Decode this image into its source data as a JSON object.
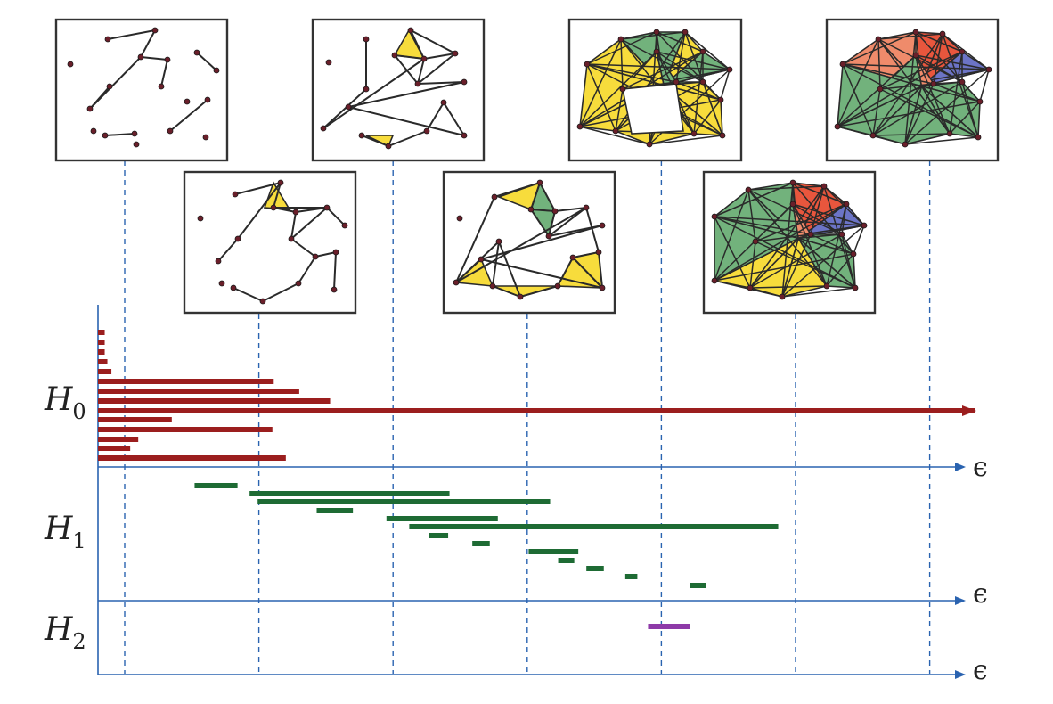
{
  "figure": {
    "colors": {
      "h0": "#9b1e1e",
      "h1": "#1e6b34",
      "h2": "#8e3aa8",
      "axis": "#2a63b0",
      "guide": "#2a63b0",
      "panel_border": "#333333",
      "edge": "#2a2a2a",
      "vertex": "#6a1f2a",
      "tri_yellow": "#f7dc3c",
      "tri_green": "#72b27c",
      "tri_red": "#e8563d",
      "tri_salmon": "#ef8b6b",
      "tri_blue": "#6c74c6"
    },
    "rows": [
      {
        "symbol": "H",
        "subscript": "0",
        "axis_symbol": "ϵ"
      },
      {
        "symbol": "H",
        "subscript": "1",
        "axis_symbol": "ϵ"
      },
      {
        "symbol": "H",
        "subscript": "2",
        "axis_symbol": "ϵ"
      }
    ],
    "filtration_panels": [
      "eps-1",
      "eps-2",
      "eps-3",
      "eps-4",
      "eps-5",
      "eps-6",
      "eps-7"
    ]
  },
  "chart_data": {
    "type": "barcode",
    "filtration_levels": [
      1,
      2,
      3,
      4,
      5,
      6,
      7
    ],
    "xlim": [
      0,
      7.73
    ],
    "H0_bars": [
      [
        0,
        0.05
      ],
      [
        0,
        0.05
      ],
      [
        0,
        0.05
      ],
      [
        0,
        0.07
      ],
      [
        0,
        0.1
      ],
      [
        0,
        1.31
      ],
      [
        0,
        1.5
      ],
      [
        0,
        1.73
      ],
      [
        0,
        "inf"
      ],
      [
        0,
        0.55
      ],
      [
        0,
        1.3
      ],
      [
        0,
        0.3
      ],
      [
        0,
        0.24
      ],
      [
        0,
        1.4
      ]
    ],
    "H1_bars": [
      [
        0.72,
        1.04
      ],
      [
        1.13,
        2.62
      ],
      [
        1.19,
        3.37
      ],
      [
        1.63,
        1.9
      ],
      [
        2.15,
        2.98
      ],
      [
        2.32,
        5.07
      ],
      [
        2.47,
        2.61
      ],
      [
        2.79,
        2.92
      ],
      [
        3.21,
        3.58
      ],
      [
        3.43,
        3.55
      ],
      [
        3.64,
        3.77
      ],
      [
        3.93,
        4.02
      ],
      [
        4.41,
        4.53
      ]
    ],
    "H2_bars": [
      [
        4.1,
        4.41
      ]
    ]
  }
}
